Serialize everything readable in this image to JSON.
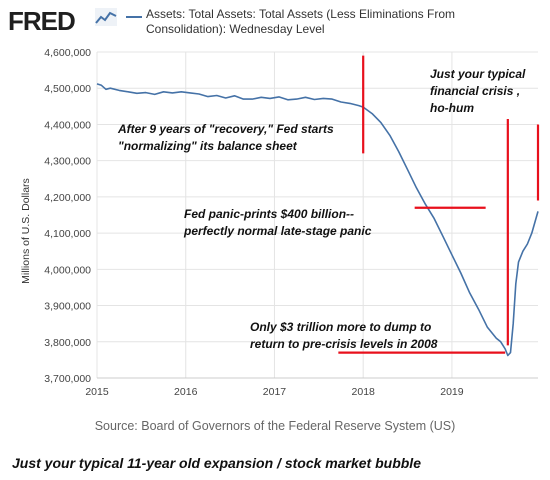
{
  "header": {
    "logo": "FRED",
    "legend": "Assets: Total Assets: Total Assets (Less Eliminations From Consolidation): Wednesday Level"
  },
  "source": "Source: Board of Governors of the Federal Reserve System (US)",
  "caption": "Just your typical 11-year old expansion / stock market bubble",
  "colors": {
    "series": "#4572a7",
    "annotation": "#e8101c",
    "grid": "#e4e4e4"
  },
  "chart_data": {
    "type": "line",
    "title": "",
    "ylabel": "Millions of U.S. Dollars",
    "xlabel": "",
    "xlim": [
      2015.0,
      2019.97
    ],
    "ylim": [
      3700000,
      4600000
    ],
    "xticks": [
      "2015",
      "2016",
      "2017",
      "2018",
      "2019"
    ],
    "yticks": [
      "3,700,000",
      "3,800,000",
      "3,900,000",
      "4,000,000",
      "4,100,000",
      "4,200,000",
      "4,300,000",
      "4,400,000",
      "4,500,000",
      "4,600,000"
    ],
    "grid": true,
    "series": [
      {
        "name": "Assets: Total Assets: Total Assets (Less Eliminations From Consolidation): Wednesday Level",
        "x": [
          2015.0,
          2015.05,
          2015.1,
          2015.15,
          2015.25,
          2015.35,
          2015.45,
          2015.55,
          2015.65,
          2015.75,
          2015.85,
          2015.95,
          2016.05,
          2016.15,
          2016.25,
          2016.35,
          2016.45,
          2016.55,
          2016.65,
          2016.75,
          2016.85,
          2016.95,
          2017.05,
          2017.15,
          2017.25,
          2017.35,
          2017.45,
          2017.55,
          2017.65,
          2017.75,
          2017.85,
          2017.95,
          2018.0,
          2018.1,
          2018.2,
          2018.3,
          2018.4,
          2018.5,
          2018.6,
          2018.7,
          2018.8,
          2018.9,
          2019.0,
          2019.1,
          2019.2,
          2019.3,
          2019.4,
          2019.5,
          2019.55,
          2019.6,
          2019.63,
          2019.66,
          2019.69,
          2019.72,
          2019.75,
          2019.8,
          2019.85,
          2019.9,
          2019.97
        ],
        "values": [
          4512000,
          4508000,
          4497000,
          4500000,
          4494000,
          4490000,
          4486000,
          4488000,
          4483000,
          4490000,
          4487000,
          4490000,
          4487000,
          4484000,
          4477000,
          4480000,
          4473000,
          4479000,
          4470000,
          4470000,
          4475000,
          4472000,
          4476000,
          4468000,
          4470000,
          4475000,
          4469000,
          4472000,
          4470000,
          4462000,
          4458000,
          4452000,
          4448000,
          4430000,
          4405000,
          4370000,
          4325000,
          4275000,
          4225000,
          4180000,
          4140000,
          4090000,
          4040000,
          3990000,
          3935000,
          3890000,
          3840000,
          3810000,
          3800000,
          3780000,
          3762000,
          3770000,
          3850000,
          3960000,
          4020000,
          4050000,
          4070000,
          4100000,
          4160000
        ]
      }
    ],
    "annotations": [
      {
        "lines": [
          "After 9 years of \"recovery,\" Fed starts",
          "\"normalizing\" its balance sheet"
        ]
      },
      {
        "lines": [
          "Just your typical",
          "financial crisis ,",
          "ho-hum"
        ]
      },
      {
        "lines": [
          "Fed panic-prints $400 billion--",
          "perfectly normal late-stage panic"
        ]
      },
      {
        "lines": [
          "Only $3 trillion more to dump to",
          "return to pre-crisis levels in 2008"
        ]
      }
    ]
  }
}
